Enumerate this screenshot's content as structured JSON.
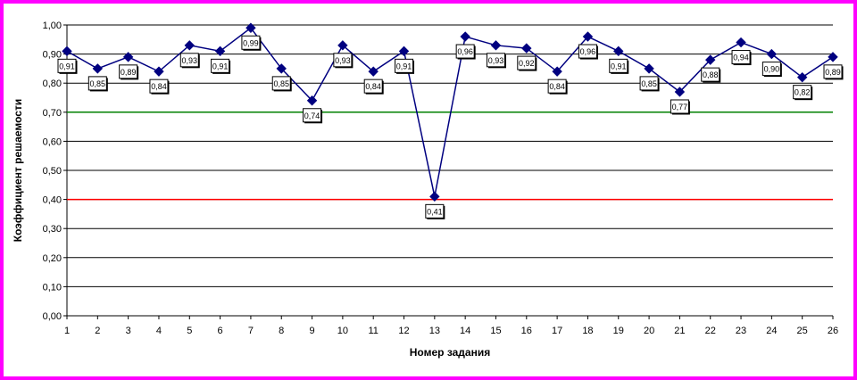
{
  "chart_data": {
    "type": "line",
    "title": "",
    "xlabel": "Номер задания",
    "ylabel": "Коэффициент решаемости",
    "ylim": [
      0,
      1
    ],
    "y_tick_step": 0.1,
    "grid": true,
    "legend": "none",
    "categories": [
      "1",
      "2",
      "3",
      "4",
      "5",
      "6",
      "7",
      "8",
      "9",
      "10",
      "11",
      "12",
      "13",
      "14",
      "15",
      "16",
      "17",
      "18",
      "19",
      "20",
      "21",
      "22",
      "23",
      "24",
      "25",
      "26"
    ],
    "y_tick_labels": [
      "0,00",
      "0,10",
      "0,20",
      "0,30",
      "0,40",
      "0,50",
      "0,60",
      "0,70",
      "0,80",
      "0,90",
      "1,00"
    ],
    "series": [
      {
        "values": [
          0.91,
          0.85,
          0.89,
          0.84,
          0.93,
          0.91,
          0.99,
          0.85,
          0.74,
          0.93,
          0.84,
          0.91,
          0.41,
          0.96,
          0.93,
          0.92,
          0.84,
          0.96,
          0.91,
          0.85,
          0.77,
          0.88,
          0.94,
          0.9,
          0.82,
          0.89
        ],
        "labels": [
          "0,91",
          "0,85",
          "0,89",
          "0,84",
          "0,93",
          "0,91",
          "0,99",
          "0,85",
          "0,74",
          "0,93",
          "0,84",
          "0,91",
          "0,41",
          "0,96",
          "0,93",
          "0,92",
          "0,84",
          "0,96",
          "0,91",
          "0,85",
          "0,77",
          "0,88",
          "0,94",
          "0,90",
          "0,82",
          "0,89"
        ],
        "color": "#000080"
      }
    ],
    "reference_lines": [
      {
        "value": 0.7,
        "color": "#008000"
      },
      {
        "value": 0.4,
        "color": "#ff0000"
      }
    ],
    "colors": {
      "frame": "#ff00ff",
      "grid": "#000000"
    }
  }
}
